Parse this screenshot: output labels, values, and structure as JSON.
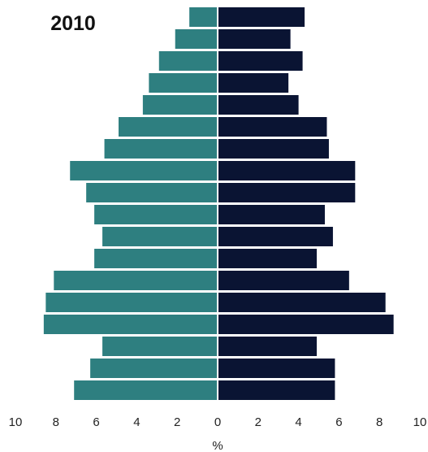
{
  "chart_data": {
    "type": "bar",
    "orientation": "horizontal",
    "layout": "population-pyramid",
    "title": "2010",
    "xlabel": "%",
    "ylabel": "",
    "xlim": [
      -10,
      10
    ],
    "x_ticks": [
      -10,
      -8,
      -6,
      -4,
      -2,
      0,
      2,
      4,
      6,
      8,
      10
    ],
    "x_tick_labels": [
      "10",
      "8",
      "6",
      "4",
      "2",
      "0",
      "2",
      "4",
      "6",
      "8",
      "10"
    ],
    "grid": false,
    "legend": "none",
    "row_order": "top-to-bottom",
    "series": [
      {
        "side": "left",
        "color": "#2e7f80",
        "values": [
          1.4,
          2.1,
          2.9,
          3.4,
          3.7,
          4.9,
          5.6,
          7.3,
          6.5,
          6.1,
          5.7,
          6.1,
          8.1,
          8.5,
          8.6,
          5.7,
          6.3,
          7.1
        ]
      },
      {
        "side": "right",
        "color": "#0a1433",
        "values": [
          4.3,
          3.6,
          4.2,
          3.5,
          4.0,
          5.4,
          5.5,
          6.8,
          6.8,
          5.3,
          5.7,
          4.9,
          6.5,
          8.3,
          8.7,
          4.9,
          5.8,
          5.8
        ]
      }
    ]
  }
}
